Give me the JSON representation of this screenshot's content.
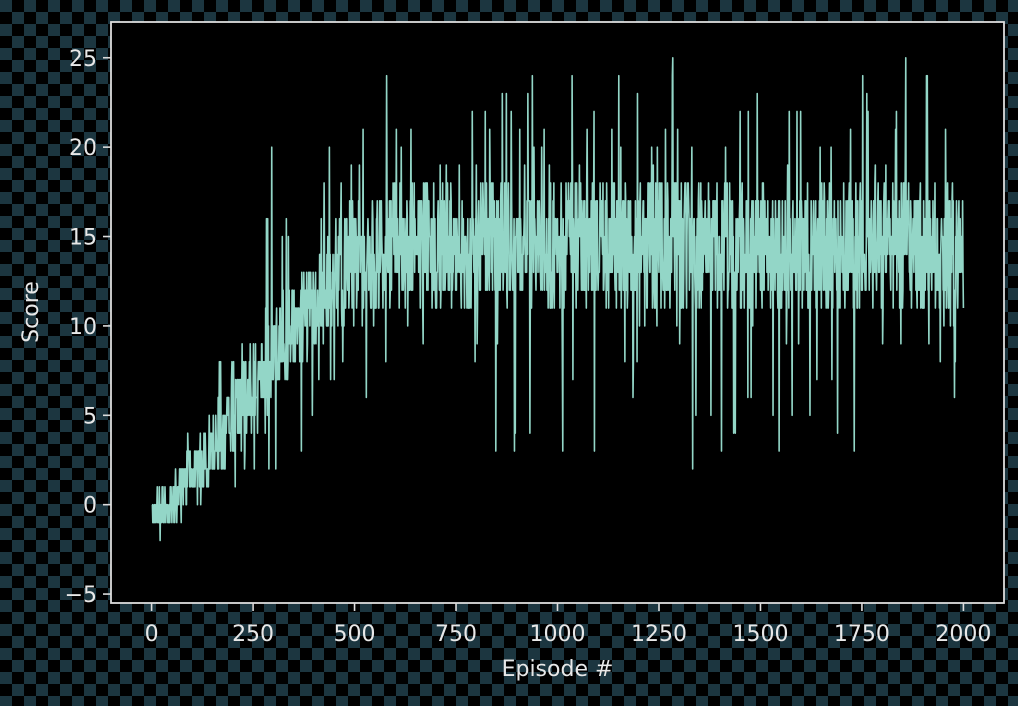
{
  "chart_data": {
    "type": "line",
    "title": "",
    "xlabel": "Episode #",
    "ylabel": "Score",
    "xlim": [
      -100,
      2100
    ],
    "ylim": [
      -5.5,
      27
    ],
    "xticks": [
      0,
      250,
      500,
      750,
      1000,
      1250,
      1500,
      1750,
      2000
    ],
    "yticks": [
      -5,
      0,
      5,
      10,
      15,
      20,
      25
    ],
    "xtick_labels": [
      "0",
      "250",
      "500",
      "750",
      "1000",
      "1250",
      "1500",
      "1750",
      "2000"
    ],
    "ytick_labels": [
      "−5",
      "0",
      "5",
      "10",
      "15",
      "20",
      "25"
    ],
    "grid": false,
    "series": [
      {
        "color": "#93d6c7",
        "episodes": 2000,
        "x_start": 1,
        "x_end": 2000,
        "envelope": {
          "x": [
            0,
            50,
            100,
            150,
            200,
            250,
            300,
            350,
            400,
            450,
            500,
            550,
            600,
            700,
            800,
            900,
            1000,
            1100,
            1200,
            1300,
            1400,
            1500,
            1600,
            1700,
            1800,
            1900,
            2000
          ],
          "max": [
            1,
            3,
            5,
            7,
            11,
            13,
            21,
            17,
            19,
            20,
            22,
            24,
            24,
            24,
            24,
            24,
            24,
            24,
            24,
            26,
            24,
            24,
            24,
            24,
            24,
            26,
            22
          ],
          "upper_band": [
            0.5,
            1.5,
            3,
            5,
            7,
            9,
            11,
            12.5,
            14,
            15.5,
            17,
            17.5,
            18,
            18,
            18,
            18,
            18,
            18,
            18.5,
            18.5,
            18,
            18,
            18,
            18,
            18,
            18,
            17.5
          ],
          "lower_band": [
            -1.5,
            -1,
            0,
            1.5,
            3,
            4.5,
            6,
            7.5,
            8.5,
            9.5,
            10,
            10.5,
            11,
            11,
            11,
            11,
            11,
            11,
            11,
            11,
            11,
            11,
            11,
            11,
            11,
            11,
            10.5
          ],
          "min": [
            -4,
            -2,
            -1,
            -1,
            -1,
            0,
            1,
            1,
            3,
            6,
            6,
            6,
            2,
            5,
            3,
            2,
            2,
            1,
            3,
            1,
            2,
            2,
            4,
            0,
            2,
            5,
            6
          ]
        }
      }
    ]
  }
}
